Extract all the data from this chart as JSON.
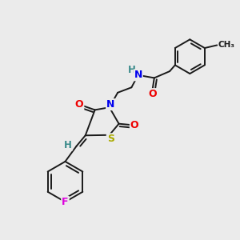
{
  "bg_color": "#ebebeb",
  "atom_colors": {
    "C": "#1a1a1a",
    "H": "#3a8a8a",
    "N": "#0000ee",
    "O": "#ee0000",
    "S": "#aaaa00",
    "F": "#dd00dd"
  },
  "bond_color": "#1a1a1a",
  "figsize": [
    3.0,
    3.0
  ],
  "dpi": 100
}
